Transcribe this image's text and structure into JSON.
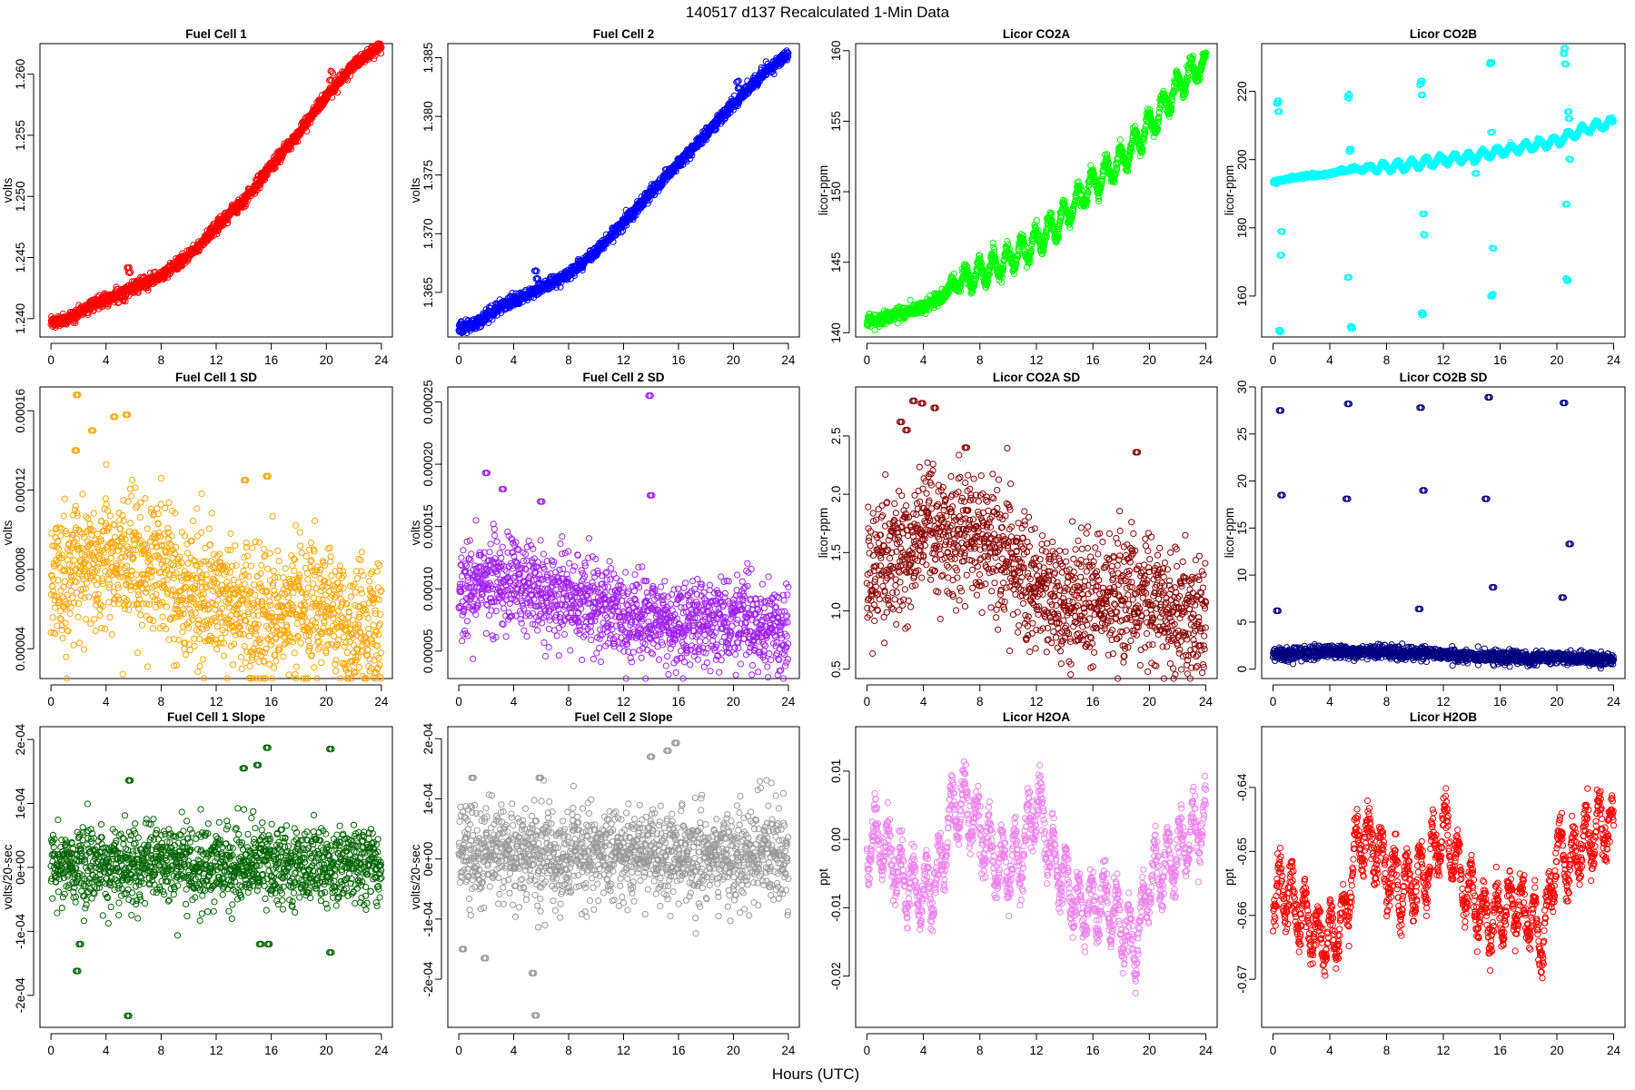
{
  "figure": {
    "title": "140517   d137   Recalculated 1-Min Data",
    "xlabel": "Hours (UTC)"
  },
  "chart_data": [
    {
      "type": "scatter",
      "title": "Fuel Cell 1",
      "ylabel": "volts",
      "color": "#ff0000",
      "xlim": [
        0,
        24
      ],
      "ylim": [
        1.2385,
        1.2625
      ],
      "xticks": [
        "0",
        "4",
        "8",
        "12",
        "16",
        "20",
        "24"
      ],
      "yticks": [
        1.24,
        1.245,
        1.25,
        1.255,
        1.26
      ],
      "ytick_labels": [
        "1.240",
        "1.245",
        "1.250",
        "1.255",
        "1.260"
      ],
      "x": [
        0,
        1,
        2,
        3,
        4,
        5,
        6,
        7,
        8,
        9,
        10,
        11,
        12,
        13,
        14,
        15,
        16,
        17,
        18,
        19,
        20,
        21,
        22,
        23,
        24
      ],
      "y": [
        1.2397,
        1.2398,
        1.2405,
        1.2412,
        1.2416,
        1.242,
        1.2425,
        1.243,
        1.2435,
        1.2443,
        1.2452,
        1.2463,
        1.2475,
        1.2486,
        1.2497,
        1.251,
        1.2525,
        1.2538,
        1.2552,
        1.2567,
        1.2582,
        1.2595,
        1.2607,
        1.2617,
        1.2623
      ],
      "noise": 0.00025,
      "spread": 8e-05,
      "outliers": [
        [
          5.6,
          1.2442
        ],
        [
          5.7,
          1.2438
        ],
        [
          20.3,
          1.2595
        ],
        [
          20.4,
          1.2602
        ]
      ]
    },
    {
      "type": "scatter",
      "title": "Fuel Cell 2",
      "ylabel": "volts",
      "color": "#0000ff",
      "xlim": [
        0,
        24
      ],
      "ylim": [
        1.3612,
        1.3862
      ],
      "xticks": [
        "0",
        "4",
        "8",
        "12",
        "16",
        "20",
        "24"
      ],
      "yticks": [
        1.365,
        1.37,
        1.375,
        1.38,
        1.385
      ],
      "ytick_labels": [
        "1.365",
        "1.370",
        "1.375",
        "1.380",
        "1.385"
      ],
      "x": [
        0,
        1,
        2,
        3,
        4,
        5,
        6,
        7,
        8,
        9,
        10,
        11,
        12,
        13,
        14,
        15,
        16,
        17,
        18,
        19,
        20,
        21,
        22,
        23,
        24
      ],
      "y": [
        1.362,
        1.3622,
        1.363,
        1.3638,
        1.3642,
        1.3648,
        1.3654,
        1.366,
        1.3665,
        1.3675,
        1.3685,
        1.3697,
        1.371,
        1.3722,
        1.3735,
        1.3748,
        1.376,
        1.3772,
        1.3785,
        1.3798,
        1.381,
        1.3822,
        1.3835,
        1.3845,
        1.3852
      ],
      "noise": 0.00025,
      "spread": 8e-05,
      "outliers": [
        [
          5.6,
          1.3668
        ],
        [
          5.7,
          1.3662
        ],
        [
          20.3,
          1.383
        ],
        [
          20.4,
          1.3824
        ]
      ]
    },
    {
      "type": "scatter",
      "title": "Licor CO2A",
      "ylabel": "licor-ppm",
      "color": "#00ff00",
      "xlim": [
        0,
        24
      ],
      "ylim": [
        139.7,
        160.5
      ],
      "xticks": [
        "0",
        "4",
        "8",
        "12",
        "16",
        "20",
        "24"
      ],
      "yticks": [
        140,
        145,
        150,
        155,
        160
      ],
      "ytick_labels": [
        "140",
        "145",
        "150",
        "155",
        "160"
      ],
      "x": [
        0,
        2,
        4,
        5.5,
        6,
        8,
        10,
        12,
        14,
        16,
        18,
        20,
        22,
        23.5,
        24
      ],
      "y": [
        140.7,
        141.3,
        141.8,
        142.7,
        143.4,
        144.2,
        145.2,
        146.4,
        148.2,
        150.6,
        152.2,
        154.6,
        157.5,
        159.0,
        158.8
      ],
      "wave_amp": 0.9,
      "wave_period": 1.0,
      "wave_start": 5,
      "noise": 0.25,
      "spread": 0.18,
      "outliers": []
    },
    {
      "type": "scatter",
      "title": "Licor CO2B",
      "ylabel": "licor-ppm",
      "color": "#00ffff",
      "xlim": [
        0,
        24
      ],
      "ylim": [
        148,
        234
      ],
      "xticks": [
        "0",
        "4",
        "8",
        "12",
        "16",
        "20",
        "24"
      ],
      "yticks": [
        160,
        180,
        200,
        220
      ],
      "ytick_labels": [
        "160",
        "180",
        "200",
        "220"
      ],
      "x": [
        0,
        2,
        4,
        5.5,
        8,
        10,
        12,
        14,
        16,
        18,
        20,
        22,
        24
      ],
      "y": [
        193.5,
        195,
        195.8,
        197.2,
        197.8,
        198.6,
        200,
        200.8,
        202.4,
        204,
        205.5,
        209,
        211
      ],
      "wave_amp": 1.2,
      "wave_period": 1.0,
      "wave_start": 5,
      "noise": 0.3,
      "spread": 0.2,
      "outliers": [
        [
          0.3,
          216.5
        ],
        [
          0.35,
          217.2
        ],
        [
          0.4,
          214
        ],
        [
          0.45,
          150
        ],
        [
          0.5,
          149.5
        ],
        [
          0.55,
          172
        ],
        [
          0.6,
          179
        ],
        [
          5.3,
          218
        ],
        [
          5.35,
          219
        ],
        [
          5.4,
          202.5
        ],
        [
          5.45,
          203
        ],
        [
          5.5,
          151
        ],
        [
          5.55,
          150.5
        ],
        [
          5.3,
          165.5
        ],
        [
          10.4,
          222
        ],
        [
          10.45,
          223
        ],
        [
          10.5,
          219
        ],
        [
          10.5,
          155
        ],
        [
          10.55,
          154.5
        ],
        [
          10.6,
          184
        ],
        [
          10.65,
          178
        ],
        [
          14.2,
          199
        ],
        [
          14.3,
          196
        ],
        [
          15.3,
          228
        ],
        [
          15.35,
          228.5
        ],
        [
          15.4,
          208
        ],
        [
          15.4,
          160
        ],
        [
          15.45,
          160.5
        ],
        [
          15.5,
          174
        ],
        [
          20.5,
          231
        ],
        [
          20.55,
          232.5
        ],
        [
          20.6,
          228
        ],
        [
          20.65,
          187
        ],
        [
          20.7,
          165
        ],
        [
          20.75,
          164.5
        ],
        [
          20.8,
          214
        ],
        [
          20.85,
          212
        ],
        [
          20.9,
          200
        ]
      ]
    },
    {
      "type": "scatter",
      "title": "Fuel Cell 1 SD",
      "ylabel": "volts",
      "color": "#ffa500",
      "xlim": [
        0,
        24
      ],
      "ylim": [
        2.5e-05,
        0.000172
      ],
      "xticks": [
        "0",
        "4",
        "8",
        "12",
        "16",
        "20",
        "24"
      ],
      "yticks": [
        4e-05,
        8e-05,
        0.00012,
        0.00016
      ],
      "ytick_labels": [
        "0.00004",
        "0.00008",
        "0.00012",
        "0.00016"
      ],
      "x": [
        0,
        2,
        4,
        6,
        8,
        10,
        12,
        14,
        16,
        18,
        20,
        22,
        24
      ],
      "y": [
        7.5e-05,
        8e-05,
        8.8e-05,
        8.3e-05,
        7.7e-05,
        7e-05,
        6.6e-05,
        6e-05,
        5.8e-05,
        6e-05,
        6.4e-05,
        5e-05,
        4.6e-05
      ],
      "noise": 1.7e-05,
      "outliers": [
        [
          1.9,
          0.000168
        ],
        [
          3.0,
          0.00015
        ],
        [
          4.6,
          0.000157
        ],
        [
          5.5,
          0.000158
        ],
        [
          1.8,
          0.00014
        ],
        [
          15.7,
          0.000127
        ],
        [
          14.1,
          0.000125
        ]
      ]
    },
    {
      "type": "scatter",
      "title": "Fuel Cell 2 SD",
      "ylabel": "volts",
      "color": "#a020f0",
      "xlim": [
        0,
        24
      ],
      "ylim": [
        2.8e-05,
        0.000262
      ],
      "xticks": [
        "0",
        "4",
        "8",
        "12",
        "16",
        "20",
        "24"
      ],
      "yticks": [
        5e-05,
        0.0001,
        0.00015,
        0.0002,
        0.00025
      ],
      "ytick_labels": [
        "0.00005",
        "0.00010",
        "0.00015",
        "0.00020",
        "0.00025"
      ],
      "x": [
        0,
        2,
        4,
        6,
        8,
        10,
        12,
        14,
        16,
        18,
        20,
        22,
        24
      ],
      "y": [
        0.0001,
        0.000105,
        0.000108,
        9.8e-05,
        9.3e-05,
        8.8e-05,
        8e-05,
        7.5e-05,
        7.3e-05,
        7.2e-05,
        7.4e-05,
        6.8e-05,
        6.2e-05
      ],
      "noise": 1.8e-05,
      "outliers": [
        [
          13.9,
          0.000255
        ],
        [
          2.0,
          0.000193
        ],
        [
          3.2,
          0.00018
        ],
        [
          14.0,
          0.000175
        ],
        [
          6.0,
          0.00017
        ]
      ]
    },
    {
      "type": "scatter",
      "title": "Licor CO2A SD",
      "ylabel": "licor-ppm",
      "color": "#8b0000",
      "xlim": [
        0,
        24
      ],
      "ylim": [
        0.42,
        2.92
      ],
      "xticks": [
        "0",
        "4",
        "8",
        "12",
        "16",
        "20",
        "24"
      ],
      "yticks": [
        0.5,
        1.0,
        1.5,
        2.0,
        2.5
      ],
      "ytick_labels": [
        "0.5",
        "1.0",
        "1.5",
        "2.0",
        "2.5"
      ],
      "x": [
        0,
        2,
        4,
        6,
        8,
        10,
        12,
        14,
        16,
        18,
        20,
        22,
        24
      ],
      "y": [
        1.35,
        1.45,
        1.65,
        1.7,
        1.62,
        1.45,
        1.2,
        1.05,
        1.1,
        1.15,
        1.1,
        1.0,
        0.9
      ],
      "noise": 0.27,
      "outliers": [
        [
          3.3,
          2.8
        ],
        [
          3.9,
          2.78
        ],
        [
          4.8,
          2.74
        ],
        [
          2.4,
          2.62
        ],
        [
          2.8,
          2.55
        ],
        [
          19.1,
          2.36
        ],
        [
          7.0,
          2.4
        ]
      ]
    },
    {
      "type": "scatter",
      "title": "Licor CO2B SD",
      "ylabel": "licor-ppm",
      "color": "#000080",
      "xlim": [
        0,
        24
      ],
      "ylim": [
        -1,
        30
      ],
      "xticks": [
        "0",
        "4",
        "8",
        "12",
        "16",
        "20",
        "24"
      ],
      "yticks": [
        0,
        5,
        10,
        15,
        20,
        25,
        30
      ],
      "ytick_labels": [
        "0",
        "5",
        "10",
        "15",
        "20",
        "25",
        "30"
      ],
      "x": [
        0,
        4,
        8,
        12,
        16,
        20,
        24
      ],
      "y": [
        1.6,
        1.9,
        1.8,
        1.5,
        1.3,
        1.2,
        1.0
      ],
      "noise": 0.35,
      "outliers": [
        [
          0.5,
          27.5
        ],
        [
          0.6,
          18.5
        ],
        [
          0.3,
          6.2
        ],
        [
          5.3,
          28.2
        ],
        [
          5.2,
          18.1
        ],
        [
          10.4,
          27.8
        ],
        [
          10.6,
          19.0
        ],
        [
          10.3,
          6.4
        ],
        [
          15.2,
          28.9
        ],
        [
          15.0,
          18.1
        ],
        [
          15.5,
          8.7
        ],
        [
          20.5,
          28.3
        ],
        [
          20.9,
          13.3
        ],
        [
          20.4,
          7.6
        ]
      ]
    },
    {
      "type": "scatter",
      "title": "Fuel Cell 1 Slope",
      "ylabel": "volts/20-sec",
      "color": "#006400",
      "xlim": [
        0,
        24
      ],
      "ylim": [
        -0.00025,
        0.00022
      ],
      "xticks": [
        "0",
        "4",
        "8",
        "12",
        "16",
        "20",
        "24"
      ],
      "yticks": [
        -0.0002,
        -0.0001,
        0,
        0.0001,
        0.0002
      ],
      "ytick_labels": [
        "-2e-04",
        "-1e-04",
        "0e+00",
        "1e-04",
        "2e-04"
      ],
      "x": [
        0,
        24
      ],
      "y": [
        5e-06,
        5e-06
      ],
      "noise": 3e-05,
      "outliers": [
        [
          5.6,
          -0.000232
        ],
        [
          15.7,
          0.000187
        ],
        [
          20.3,
          0.000185
        ],
        [
          14.0,
          0.000155
        ],
        [
          15.0,
          0.00016
        ],
        [
          5.7,
          0.000136
        ],
        [
          1.9,
          -0.000162
        ],
        [
          2.1,
          -0.00012
        ],
        [
          20.3,
          -0.000133
        ],
        [
          15.2,
          -0.00012
        ],
        [
          15.8,
          -0.00012
        ]
      ]
    },
    {
      "type": "scatter",
      "title": "Fuel Cell 2 Slope",
      "ylabel": "volts/20-sec",
      "color": "#999999",
      "xlim": [
        0,
        24
      ],
      "ylim": [
        -0.00028,
        0.00022
      ],
      "xticks": [
        "0",
        "4",
        "8",
        "12",
        "16",
        "20",
        "24"
      ],
      "yticks": [
        -0.0002,
        -0.0001,
        0,
        0.0001,
        0.0002
      ],
      "ytick_labels": [
        "-2e-04",
        "-1e-04",
        "0e+00",
        "1e-04",
        "2e-04"
      ],
      "x": [
        0,
        24
      ],
      "y": [
        5e-06,
        5e-06
      ],
      "noise": 4e-05,
      "outliers": [
        [
          5.6,
          -0.00026
        ],
        [
          5.4,
          -0.00019
        ],
        [
          15.8,
          0.000193
        ],
        [
          14.0,
          0.00017
        ],
        [
          15.2,
          0.00018
        ],
        [
          0.3,
          -0.00015
        ],
        [
          1.9,
          -0.000165
        ],
        [
          5.9,
          0.000135
        ],
        [
          1.0,
          0.000135
        ]
      ]
    },
    {
      "type": "scatter",
      "title": "Licor H2OA",
      "ylabel": "ppt",
      "color": "#ee82ee",
      "xlim": [
        0,
        24
      ],
      "ylim": [
        -0.0275,
        0.0165
      ],
      "xticks": [
        "0",
        "4",
        "8",
        "12",
        "16",
        "20",
        "24"
      ],
      "yticks": [
        -0.02,
        -0.01,
        0,
        0.01
      ],
      "ytick_labels": [
        "-0.02",
        "-0.01",
        "0.00",
        "0.01"
      ],
      "x": [
        0,
        1,
        2,
        3,
        4,
        5,
        6,
        7,
        8,
        9,
        10,
        11,
        12,
        13,
        14,
        15,
        16,
        17,
        18,
        19,
        20,
        21,
        22,
        23,
        24
      ],
      "y": [
        -0.001,
        0.0,
        -0.004,
        -0.007,
        -0.008,
        -0.006,
        0.004,
        0.005,
        0.002,
        -0.003,
        -0.004,
        -0.002,
        0.006,
        -0.002,
        -0.006,
        -0.01,
        -0.01,
        -0.009,
        -0.012,
        -0.016,
        -0.006,
        -0.004,
        -0.002,
        0.001,
        0.003
      ],
      "wave_amp": 0.004,
      "wave_period": 0.9,
      "wave_start": 0,
      "noise": 0.0015,
      "spread": 0.001,
      "outliers": []
    },
    {
      "type": "scatter",
      "title": "Licor H2OB",
      "ylabel": "ppt",
      "color": "#ff0000",
      "xlim": [
        0,
        24
      ],
      "ylim": [
        -0.6775,
        -0.6305
      ],
      "xticks": [
        "0",
        "4",
        "8",
        "12",
        "16",
        "20",
        "24"
      ],
      "yticks": [
        -0.67,
        -0.66,
        -0.65,
        -0.64
      ],
      "ytick_labels": [
        "-0.67",
        "-0.66",
        "-0.65",
        "-0.64"
      ],
      "x": [
        0,
        1,
        2,
        3,
        4,
        5,
        6,
        7,
        8,
        9,
        10,
        11,
        12,
        13,
        14,
        15,
        16,
        17,
        18,
        19,
        20,
        21,
        22,
        23,
        24
      ],
      "y": [
        -0.657,
        -0.656,
        -0.66,
        -0.663,
        -0.664,
        -0.661,
        -0.648,
        -0.649,
        -0.653,
        -0.656,
        -0.655,
        -0.653,
        -0.646,
        -0.652,
        -0.657,
        -0.661,
        -0.66,
        -0.658,
        -0.66,
        -0.664,
        -0.65,
        -0.652,
        -0.648,
        -0.646,
        -0.647
      ],
      "wave_amp": 0.004,
      "wave_period": 0.9,
      "wave_start": 0,
      "noise": 0.0015,
      "spread": 0.001,
      "outliers": []
    }
  ]
}
